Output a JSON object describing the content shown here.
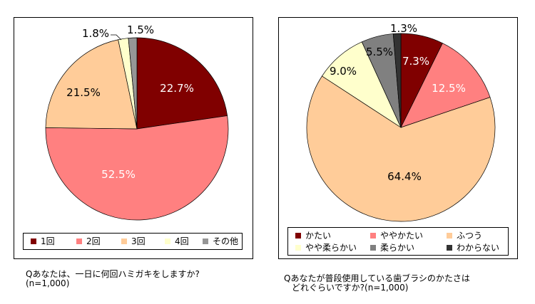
{
  "chart_data": [
    {
      "type": "pie",
      "question_line1": "Qあなたは、一日に何回ハミガキをしますか?",
      "question_line2": "(n=1,000)",
      "categories": [
        "1回",
        "2回",
        "3回",
        "4回",
        "その他"
      ],
      "values": [
        22.7,
        52.5,
        21.5,
        1.8,
        1.5
      ],
      "labels": [
        "22.7%",
        "52.5%",
        "21.5%",
        "1.8%",
        "1.5%"
      ],
      "colors": [
        "#800000",
        "#FF8080",
        "#FFCC99",
        "#FFFFCC",
        "#969696"
      ],
      "label_colors": [
        "#FFFFFF",
        "#FFFFFF",
        "#000000",
        "#000000",
        "#000000"
      ],
      "legend_position": "bottom"
    },
    {
      "type": "pie",
      "question_line1": "Qあなたが普段使用している歯ブラシのかたさは",
      "question_line2": "どれぐらいですか?(n=1,000)",
      "categories": [
        "かたい",
        "ややかたい",
        "ふつう",
        "やや柔らかい",
        "柔らかい",
        "わからない"
      ],
      "values": [
        7.3,
        12.5,
        64.4,
        9.0,
        5.5,
        1.3
      ],
      "labels": [
        "7.3%",
        "12.5%",
        "64.4%",
        "9.0%",
        "5.5%",
        "1.3%"
      ],
      "colors": [
        "#800000",
        "#FF8080",
        "#FFCC99",
        "#FFFFCC",
        "#808080",
        "#333333"
      ],
      "label_colors": [
        "#FFFFFF",
        "#FFFFFF",
        "#000000",
        "#000000",
        "#000000",
        "#000000"
      ],
      "legend_position": "bottom"
    }
  ]
}
